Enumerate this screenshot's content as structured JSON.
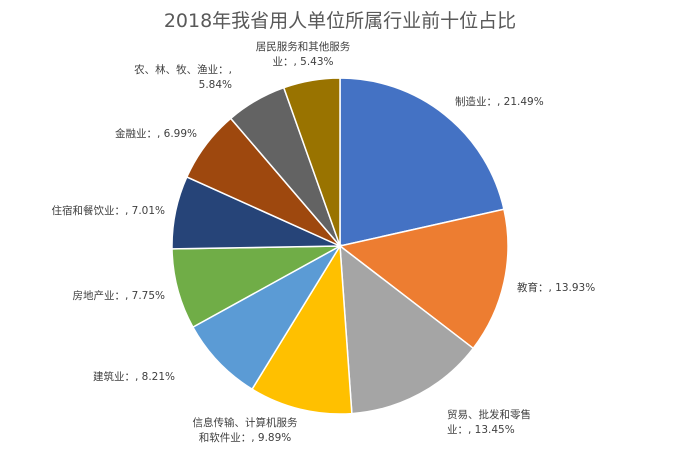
{
  "chart_data": {
    "type": "pie",
    "title": "2018年我省用人单位所属行业前十位占比",
    "unit": "%",
    "slices": [
      {
        "name": "制造业",
        "value": 21.49,
        "label_lines": [
          "制造业：, 21.49%"
        ],
        "color": "#4472C4"
      },
      {
        "name": "教育",
        "value": 13.93,
        "label_lines": [
          "教育：, 13.93%"
        ],
        "color": "#ED7D31"
      },
      {
        "name": "贸易、批发和零售业",
        "value": 13.45,
        "label_lines": [
          "贸易、批发和零售",
          "业：, 13.45%"
        ],
        "color": "#A5A5A5"
      },
      {
        "name": "信息传输、计算机服务和软件业",
        "value": 9.89,
        "label_lines": [
          "信息传输、计算机服务",
          "和软件业：, 9.89%"
        ],
        "color": "#FFC000"
      },
      {
        "name": "建筑业",
        "value": 8.21,
        "label_lines": [
          "建筑业：, 8.21%"
        ],
        "color": "#5B9BD5"
      },
      {
        "name": "房地产业",
        "value": 7.75,
        "label_lines": [
          "房地产业：, 7.75%"
        ],
        "color": "#70AD47"
      },
      {
        "name": "住宿和餐饮业",
        "value": 7.01,
        "label_lines": [
          "住宿和餐饮业：, 7.01%"
        ],
        "color": "#264478"
      },
      {
        "name": "金融业",
        "value": 6.99,
        "label_lines": [
          "金融业：, 6.99%"
        ],
        "color": "#9E480E"
      },
      {
        "name": "农、林、牧、渔业",
        "value": 5.84,
        "label_lines": [
          "农、林、牧、渔业：,",
          "5.84%"
        ],
        "color": "#636363"
      },
      {
        "name": "居民服务和其他服务业",
        "value": 5.43,
        "label_lines": [
          "居民服务和其他服务",
          "业：, 5.43%"
        ],
        "color": "#997300"
      }
    ],
    "start_angle": "12 o'clock",
    "direction": "clockwise",
    "legend": "none"
  }
}
